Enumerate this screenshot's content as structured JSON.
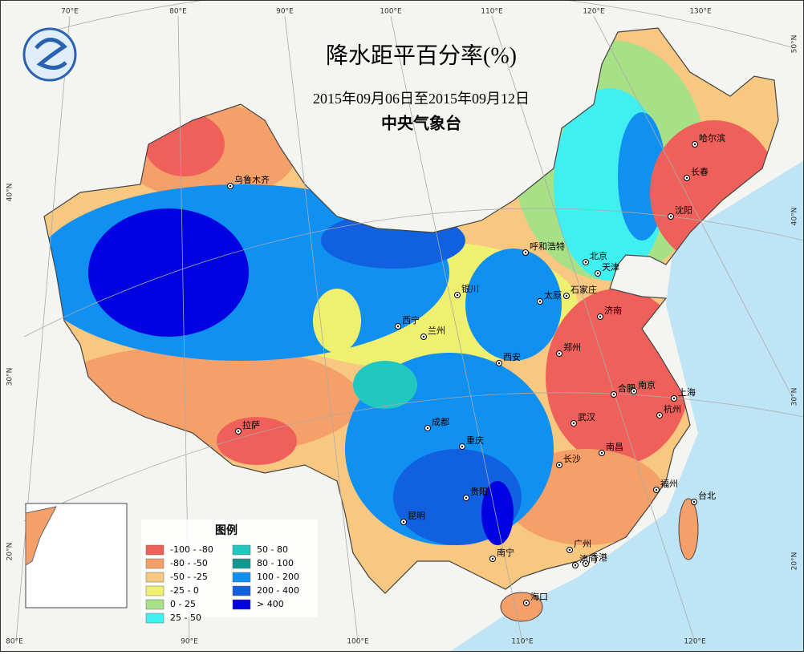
{
  "header": {
    "title": "降水距平百分率(%)",
    "period": "2015年09月06日至2015年09月12日",
    "agency": "中央气象台"
  },
  "legend": {
    "title": "图例",
    "items": [
      {
        "label": "-100 - -80",
        "color": "#f0605a"
      },
      {
        "label": "-80 - -50",
        "color": "#f5a068"
      },
      {
        "label": "-50 - -25",
        "color": "#f8c880"
      },
      {
        "label": "-25 - 0",
        "color": "#f0f070"
      },
      {
        "label": "0 - 25",
        "color": "#a8e088"
      },
      {
        "label": "25 - 50",
        "color": "#40f0f0"
      },
      {
        "label": "50 - 80",
        "color": "#20c8c0"
      },
      {
        "label": "80 - 100",
        "color": "#109890"
      },
      {
        "label": "100 - 200",
        "color": "#1090f0"
      },
      {
        "label": "200 - 400",
        "color": "#1060e0"
      },
      {
        "label": "> 400",
        "color": "#0000e0"
      }
    ]
  },
  "cities": [
    "乌鲁木齐",
    "哈尔滨",
    "长春",
    "沈阳",
    "呼和浩特",
    "北京",
    "天津",
    "银川",
    "太原",
    "石家庄",
    "济南",
    "西宁",
    "兰州",
    "郑州",
    "西安",
    "合肥",
    "南京",
    "上海",
    "杭州",
    "武汉",
    "拉萨",
    "成都",
    "重庆",
    "长沙",
    "南昌",
    "福州",
    "台北",
    "贵阳",
    "昆明",
    "南宁",
    "广州",
    "澳门",
    "香港",
    "海口"
  ],
  "graticule": {
    "top": [
      "70°E",
      "80°E",
      "90°E",
      "100°E",
      "110°E",
      "120°E",
      "130°E"
    ],
    "left": [
      "40°N",
      "30°N",
      "20°N"
    ],
    "right": [
      "50°N",
      "40°N",
      "30°N",
      "20°N"
    ],
    "bottom": [
      "80°E",
      "90°E",
      "100°E",
      "110°E",
      "120°E"
    ]
  }
}
